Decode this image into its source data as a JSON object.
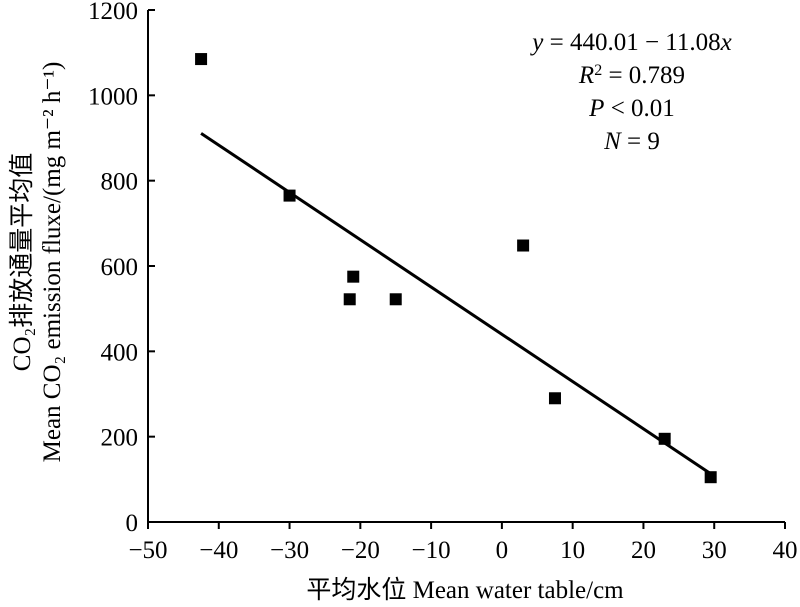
{
  "chart_data": {
    "type": "scatter",
    "title": "",
    "xlabel": "平均水位 Mean water table/cm",
    "ylabel_line1": "CO₂排放通量平均值",
    "ylabel_line2": "Mean CO₂ emission fluxe/(mg m⁻² h⁻¹)",
    "xlim": [
      -50,
      40
    ],
    "ylim": [
      0,
      1200
    ],
    "xticks": [
      -50,
      -40,
      -30,
      -20,
      -10,
      0,
      10,
      20,
      30,
      40
    ],
    "yticks": [
      0,
      200,
      400,
      600,
      800,
      1000,
      1200
    ],
    "grid": false,
    "series": [
      {
        "points": [
          {
            "x": -42.5,
            "y": 1085
          },
          {
            "x": -30,
            "y": 765
          },
          {
            "x": -21,
            "y": 575
          },
          {
            "x": -21.5,
            "y": 522
          },
          {
            "x": -15,
            "y": 522
          },
          {
            "x": 3,
            "y": 648
          },
          {
            "x": 7.5,
            "y": 290
          },
          {
            "x": 23,
            "y": 195
          },
          {
            "x": 29.5,
            "y": 105
          }
        ]
      }
    ],
    "fit": {
      "type": "linear",
      "intercept": 440.01,
      "slope": -11.08,
      "x_range": [
        -42.5,
        29.5
      ]
    },
    "annotations": {
      "equation": "y = 440.01 − 11.08x",
      "r2": "R² = 0.789",
      "p": "P < 0.01",
      "n": "N = 9"
    }
  }
}
